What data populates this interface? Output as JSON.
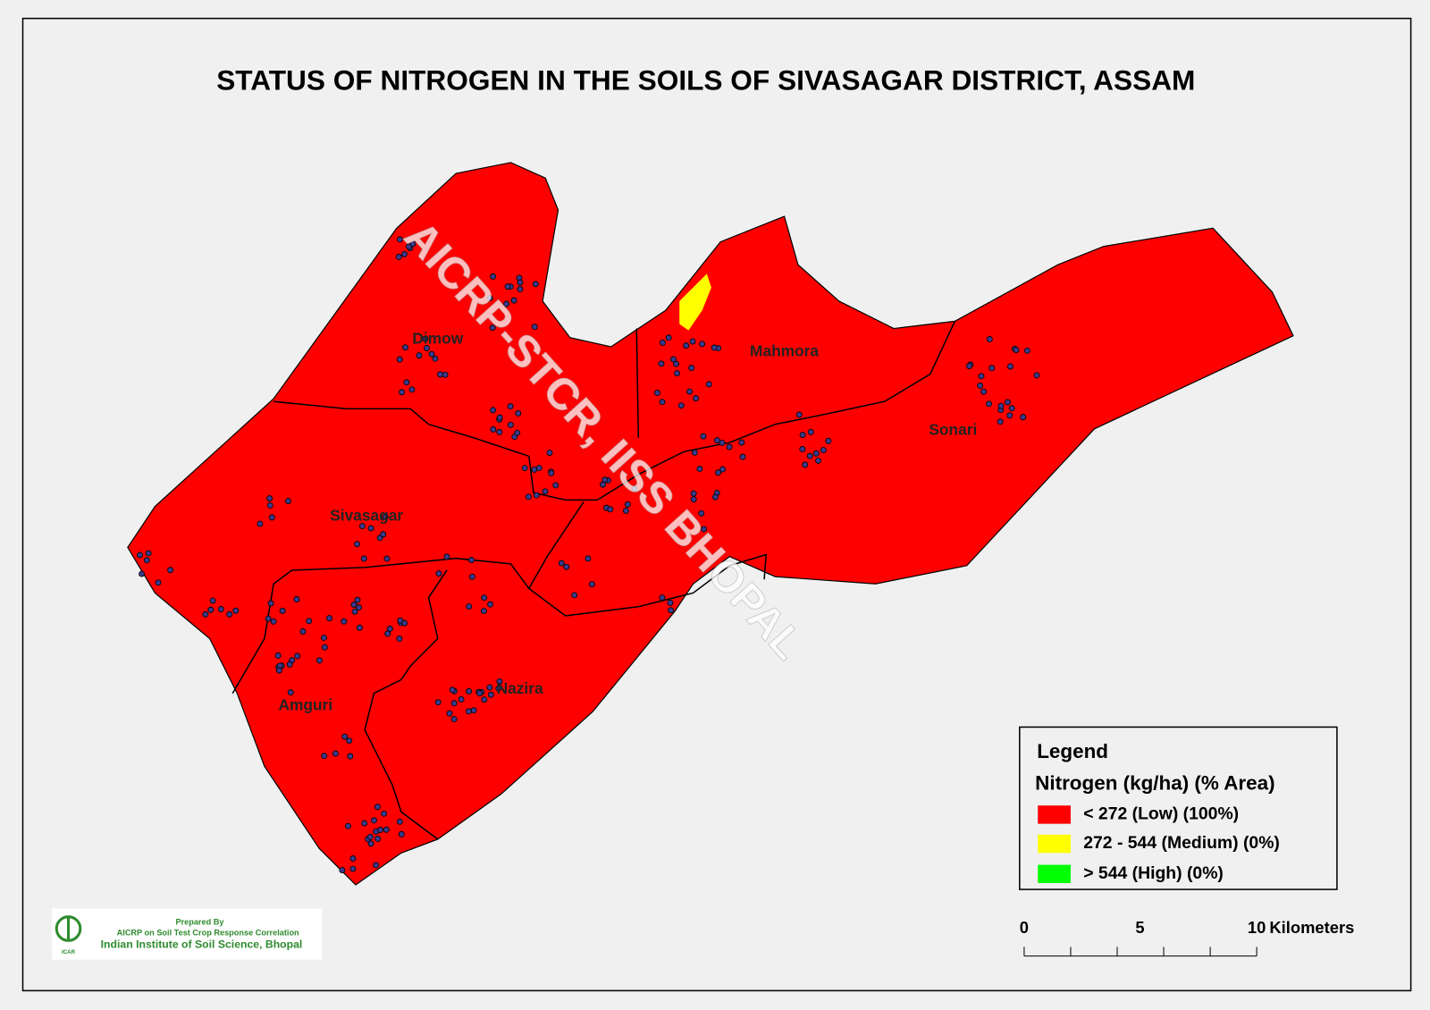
{
  "header": {
    "title": "STATUS OF NITROGEN   IN THE SOILS OF SIVASAGAR DISTRICT, ASSAM"
  },
  "watermark": "AICRP-STCR, IISS BHOPAL",
  "districts": [
    "Dimow",
    "Mahmora",
    "Sonari",
    "Sivasagar",
    "Nazira",
    "Amguri"
  ],
  "legend": {
    "title": "Legend",
    "subtitle": "Nitrogen (kg/ha) (% Area)",
    "items": [
      {
        "label": "< 272 (Low) (100%)",
        "color": "#ff0000"
      },
      {
        "label": "272 - 544 (Medium) (0%)",
        "color": "#ffff00"
      },
      {
        "label": "> 544 (High) (0%)",
        "color": "#00ff00"
      }
    ]
  },
  "scale_bar": {
    "labels": [
      "0",
      "5",
      "10"
    ],
    "unit": "Kilometers"
  },
  "logo": {
    "prepared": "Prepared By",
    "project": "AICRP on Soil Test Crop Response Correlation",
    "institute": "Indian Institute of Soil Science, Bhopal",
    "badge": "ICAR"
  }
}
